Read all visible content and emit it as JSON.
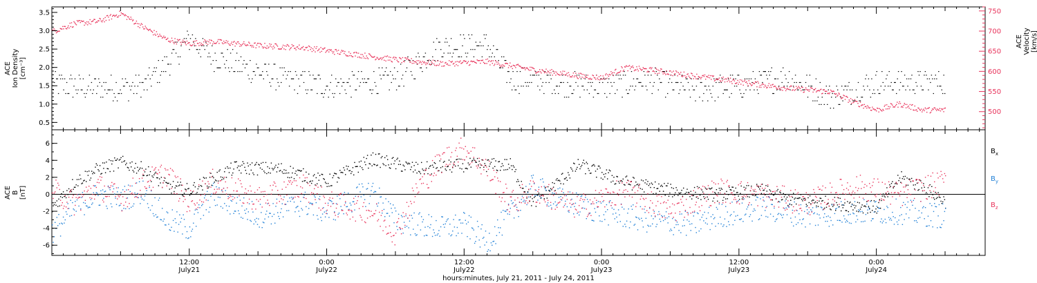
{
  "chart_data": [
    {
      "type": "scatter",
      "panel": "top",
      "ylabel_lines": [
        "ACE",
        "Ion Density",
        "[cm⁻³]"
      ],
      "ylim": [
        0.3,
        3.65
      ],
      "yticks": [
        "0.5",
        "1.0",
        "1.5",
        "2.0",
        "2.5",
        "3.0",
        "3.5"
      ],
      "ytick_values": [
        0.5,
        1.0,
        1.5,
        2.0,
        2.5,
        3.0,
        3.5
      ],
      "right_axis": {
        "ylabel_lines": [
          "ACE",
          "Velocity",
          "[km/s]"
        ],
        "ylim": [
          455,
          760
        ],
        "yticks": [
          "500",
          "550",
          "600",
          "650",
          "700",
          "750"
        ],
        "ytick_values": [
          500,
          550,
          600,
          650,
          700,
          750
        ],
        "color": "#e8325a"
      },
      "series": [
        {
          "color": "#000000",
          "axis": "left",
          "points_hours": [
            0,
            4,
            8,
            10,
            12,
            14,
            16,
            20,
            24,
            28,
            30,
            34,
            38,
            40,
            44,
            48,
            52,
            56,
            60,
            64,
            68,
            70,
            72,
            76,
            78
          ],
          "values": [
            1.55,
            1.45,
            1.5,
            2.1,
            2.8,
            2.3,
            2.1,
            1.7,
            1.5,
            1.6,
            1.7,
            2.6,
            2.6,
            1.7,
            1.6,
            1.5,
            1.65,
            1.4,
            1.5,
            1.75,
            1.2,
            1.4,
            1.6,
            1.6,
            1.6
          ]
        },
        {
          "color": "#e8325a",
          "axis": "right",
          "points_hours": [
            0,
            2,
            4,
            6,
            8,
            10,
            12,
            14,
            18,
            22,
            26,
            30,
            34,
            38,
            42,
            46,
            48,
            50,
            52,
            56,
            60,
            64,
            68,
            70,
            72,
            74,
            76,
            78
          ],
          "values": [
            700,
            720,
            725,
            745,
            710,
            680,
            670,
            675,
            665,
            660,
            645,
            630,
            620,
            625,
            605,
            590,
            585,
            610,
            605,
            590,
            575,
            560,
            550,
            525,
            505,
            520,
            505,
            505
          ]
        }
      ]
    },
    {
      "type": "scatter",
      "panel": "bottom",
      "ylabel_lines": [
        "ACE",
        "B",
        "[nT]"
      ],
      "ylim": [
        -7.2,
        7.6
      ],
      "yticks": [
        "-6",
        "-4",
        "-2",
        "0",
        "2",
        "4",
        "6"
      ],
      "ytick_values": [
        -6,
        -4,
        -2,
        0,
        2,
        4,
        6
      ],
      "zero_line": true,
      "series": [
        {
          "label": "B",
          "sub": "x",
          "color": "#000000",
          "points_hours": [
            0,
            2,
            4,
            6,
            8,
            10,
            12,
            16,
            20,
            24,
            28,
            32,
            36,
            40,
            42,
            46,
            50,
            54,
            58,
            62,
            64,
            68,
            72,
            74,
            76,
            78
          ],
          "values": [
            -1.5,
            1.5,
            3.0,
            3.8,
            3.0,
            1.0,
            0.5,
            3.2,
            3.0,
            1.5,
            4.2,
            3.0,
            3.5,
            3.5,
            -1.0,
            3.5,
            1.5,
            0.5,
            0.0,
            0.5,
            -0.5,
            -1.0,
            -1.5,
            2.0,
            1.0,
            -0.8
          ]
        },
        {
          "label": "B",
          "sub": "y",
          "color": "#1f7fd6",
          "points_hours": [
            0,
            2,
            4,
            6,
            8,
            10,
            12,
            14,
            18,
            22,
            24,
            28,
            30,
            34,
            36,
            38,
            42,
            44,
            48,
            52,
            56,
            58,
            62,
            66,
            70,
            74,
            78
          ],
          "values": [
            -4.5,
            -1.5,
            0.0,
            -0.5,
            0.5,
            -3.0,
            -4.0,
            0.0,
            -2.5,
            -1.0,
            -2.0,
            0.5,
            -3.0,
            -4.0,
            -3.5,
            -5.5,
            1.0,
            -0.5,
            -2.0,
            -3.0,
            -3.5,
            -2.5,
            -1.5,
            -2.5,
            -2.0,
            -2.0,
            -2.5
          ]
        },
        {
          "label": "B",
          "sub": "z",
          "color": "#e8325a",
          "points_hours": [
            0,
            2,
            4,
            6,
            8,
            10,
            12,
            14,
            18,
            22,
            24,
            28,
            30,
            32,
            34,
            36,
            38,
            40,
            42,
            46,
            50,
            54,
            58,
            62,
            66,
            70,
            74,
            78
          ],
          "values": [
            0.5,
            -1.0,
            1.0,
            -0.5,
            1.5,
            2.5,
            -1.0,
            1.5,
            -0.5,
            1.0,
            -1.0,
            -2.0,
            -4.5,
            1.0,
            4.0,
            5.5,
            3.0,
            -1.0,
            0.5,
            -1.5,
            0.5,
            -2.0,
            0.5,
            0.0,
            -1.0,
            1.0,
            0.0,
            1.5
          ]
        }
      ]
    }
  ],
  "x_axis": {
    "range_hours": [
      0,
      81.5
    ],
    "major_ticks": [
      {
        "hour": 12,
        "time": "12:00",
        "date": "July21"
      },
      {
        "hour": 24,
        "time": "0:00",
        "date": "July22"
      },
      {
        "hour": 36,
        "time": "12:00",
        "date": "July22"
      },
      {
        "hour": 48,
        "time": "0:00",
        "date": "July23"
      },
      {
        "hour": 60,
        "time": "12:00",
        "date": "July23"
      },
      {
        "hour": 72,
        "time": "0:00",
        "date": "July24"
      }
    ],
    "label": "hours:minutes, July 21, 2011 - July 24, 2011"
  }
}
